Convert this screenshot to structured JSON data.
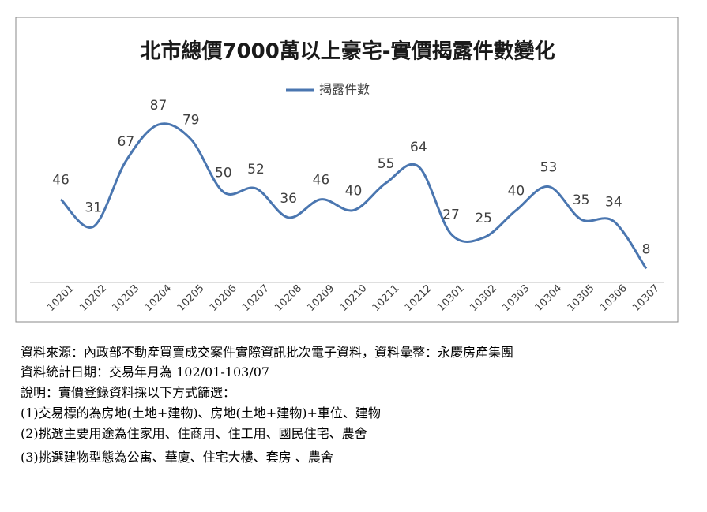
{
  "chart_data": {
    "type": "line",
    "title": "北市總價7000萬以上豪宅-實價揭露件數變化",
    "categories": [
      "10201",
      "10202",
      "10203",
      "10204",
      "10205",
      "10206",
      "10207",
      "10208",
      "10209",
      "10210",
      "10211",
      "10212",
      "10301",
      "10302",
      "10303",
      "10304",
      "10305",
      "10306",
      "10307"
    ],
    "series": [
      {
        "name": "揭露件數",
        "color": "#4a76b0",
        "values": [
          46,
          31,
          67,
          87,
          79,
          50,
          52,
          36,
          46,
          40,
          55,
          64,
          27,
          25,
          40,
          53,
          35,
          34,
          8
        ]
      }
    ]
  },
  "notes": [
    "資料來源：內政部不動產買賣成交案件實際資訊批次電子資料，資料彙整：永慶房產集團",
    "資料統計日期：交易年月為 102/01-103/07",
    "說明：實價登錄資料採以下方式篩選：",
    "(1)交易標的為房地(土地+建物)、房地(土地+建物)+車位、建物",
    "(2)挑選主要用途為住家用、住商用、住工用、國民住宅、農舍",
    "(3)挑選建物型態為公寓、華廈、住宅大樓、套房 、農舍"
  ]
}
